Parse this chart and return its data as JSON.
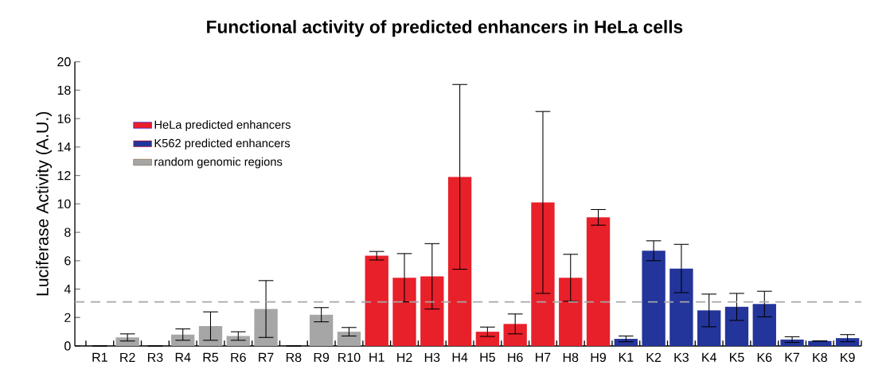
{
  "chart_data": {
    "type": "bar",
    "title": "Functional activity of predicted enhancers in HeLa cells",
    "ylabel": "Luciferase Activity (A.U.)",
    "categories": [
      "R1",
      "R2",
      "R3",
      "R4",
      "R5",
      "R6",
      "R7",
      "R8",
      "R9",
      "R10",
      "H1",
      "H2",
      "H3",
      "H4",
      "H5",
      "H6",
      "H7",
      "H8",
      "H9",
      "K1",
      "K2",
      "K3",
      "K4",
      "K5",
      "K6",
      "K7",
      "K8",
      "K9"
    ],
    "series": [
      {
        "name": "HeLa predicted enhancers",
        "color": "#e8202a",
        "values": [
          null,
          null,
          null,
          null,
          null,
          null,
          null,
          null,
          null,
          null,
          6.35,
          4.8,
          4.9,
          11.9,
          1.0,
          1.55,
          10.1,
          4.8,
          9.05,
          null,
          null,
          null,
          null,
          null,
          null,
          null,
          null,
          null
        ],
        "errors": [
          null,
          null,
          null,
          null,
          null,
          null,
          null,
          null,
          null,
          null,
          0.3,
          1.7,
          2.3,
          6.5,
          0.33,
          0.7,
          6.4,
          1.65,
          0.55,
          null,
          null,
          null,
          null,
          null,
          null,
          null,
          null,
          null
        ]
      },
      {
        "name": "K562 predicted enhancers",
        "color": "#23349a",
        "values": [
          null,
          null,
          null,
          null,
          null,
          null,
          null,
          null,
          null,
          null,
          null,
          null,
          null,
          null,
          null,
          null,
          null,
          null,
          null,
          0.5,
          6.7,
          5.45,
          2.5,
          2.75,
          2.95,
          0.45,
          0.35,
          0.55
        ],
        "errors": [
          null,
          null,
          null,
          null,
          null,
          null,
          null,
          null,
          null,
          null,
          null,
          null,
          null,
          null,
          null,
          null,
          null,
          null,
          null,
          0.2,
          0.7,
          1.7,
          1.15,
          0.95,
          0.9,
          0.2,
          null,
          0.25
        ]
      },
      {
        "name": "random genomic regions",
        "color": "#a6a6a6",
        "values": [
          0,
          0.6,
          0,
          0.8,
          1.4,
          0.7,
          2.6,
          0,
          2.2,
          1.0,
          null,
          null,
          null,
          null,
          null,
          null,
          null,
          null,
          null,
          null,
          null,
          null,
          null,
          null,
          null,
          null,
          null,
          null
        ],
        "errors": [
          null,
          0.25,
          null,
          0.4,
          1.0,
          0.3,
          2.0,
          null,
          0.5,
          0.3,
          null,
          null,
          null,
          null,
          null,
          null,
          null,
          null,
          null,
          null,
          null,
          null,
          null,
          null,
          null,
          null,
          null,
          null
        ]
      }
    ],
    "ylim": [
      0,
      20
    ],
    "yticks": [
      0,
      2,
      4,
      6,
      8,
      10,
      12,
      14,
      16,
      18,
      20
    ],
    "legend": "top left",
    "ref_lines": [
      {
        "axis": "y",
        "value": 3.1,
        "color": "#a6a6a6",
        "line_style": "dashed"
      }
    ]
  }
}
